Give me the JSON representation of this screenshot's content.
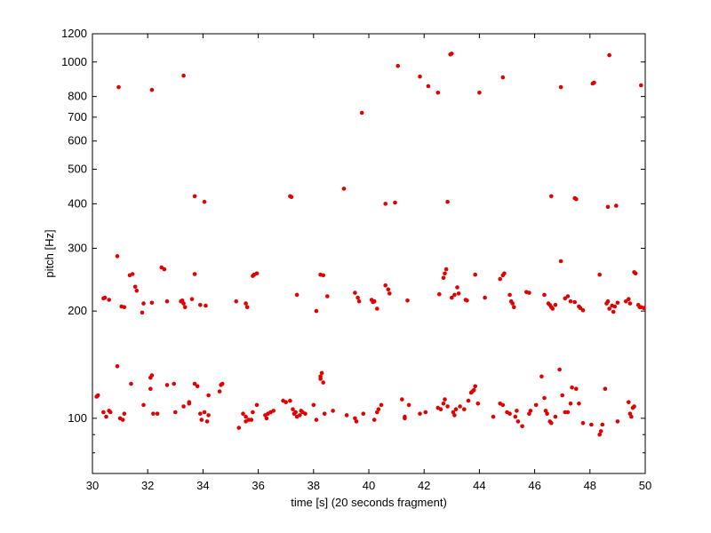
{
  "chart_data": {
    "type": "scatter",
    "title": "",
    "xlabel": "time [s] (20 seconds fragment)",
    "ylabel": "pitch [Hz]",
    "xlim": [
      30,
      50
    ],
    "ylim": [
      70,
      1200
    ],
    "y_scale": "log",
    "x_ticks": [
      30,
      32,
      34,
      36,
      38,
      40,
      42,
      44,
      46,
      48,
      50
    ],
    "y_ticks": [
      100,
      200,
      300,
      400,
      500,
      600,
      700,
      800,
      1000,
      1200
    ],
    "y_minor_ticks": [
      70,
      80,
      90
    ],
    "grid": false,
    "marker_color": "#e00000",
    "points": [
      [
        30.15,
        115
      ],
      [
        30.2,
        116
      ],
      [
        30.4,
        104
      ],
      [
        30.5,
        101
      ],
      [
        30.6,
        105
      ],
      [
        30.65,
        104
      ],
      [
        30.9,
        140
      ],
      [
        31.0,
        100
      ],
      [
        31.1,
        99
      ],
      [
        31.15,
        103
      ],
      [
        31.4,
        125
      ],
      [
        31.85,
        109
      ],
      [
        32.1,
        130
      ],
      [
        32.15,
        132
      ],
      [
        32.1,
        121
      ],
      [
        32.2,
        103
      ],
      [
        32.35,
        103
      ],
      [
        32.7,
        124
      ],
      [
        32.95,
        125
      ],
      [
        33.0,
        104
      ],
      [
        33.3,
        108
      ],
      [
        33.5,
        110
      ],
      [
        33.5,
        111
      ],
      [
        33.7,
        125
      ],
      [
        33.8,
        123
      ],
      [
        33.9,
        103
      ],
      [
        33.95,
        99
      ],
      [
        34.05,
        104
      ],
      [
        34.15,
        98
      ],
      [
        34.2,
        102
      ],
      [
        34.2,
        116
      ],
      [
        34.6,
        119
      ],
      [
        34.65,
        124
      ],
      [
        34.7,
        125
      ],
      [
        35.3,
        94
      ],
      [
        35.45,
        103
      ],
      [
        35.55,
        98
      ],
      [
        35.55,
        101
      ],
      [
        35.65,
        99
      ],
      [
        35.75,
        99
      ],
      [
        35.8,
        104
      ],
      [
        35.95,
        109
      ],
      [
        36.25,
        102
      ],
      [
        36.3,
        100
      ],
      [
        36.35,
        103
      ],
      [
        36.45,
        104
      ],
      [
        36.55,
        105
      ],
      [
        36.9,
        112
      ],
      [
        37.0,
        111
      ],
      [
        37.15,
        112
      ],
      [
        37.25,
        106
      ],
      [
        37.3,
        103
      ],
      [
        37.35,
        104
      ],
      [
        37.4,
        101
      ],
      [
        37.5,
        102
      ],
      [
        37.55,
        105
      ],
      [
        37.6,
        104
      ],
      [
        37.7,
        103
      ],
      [
        38.0,
        109
      ],
      [
        38.1,
        99
      ],
      [
        38.25,
        129
      ],
      [
        38.25,
        131
      ],
      [
        38.3,
        134
      ],
      [
        38.35,
        126
      ],
      [
        38.4,
        103
      ],
      [
        38.7,
        105
      ],
      [
        39.2,
        102
      ],
      [
        39.5,
        100
      ],
      [
        39.55,
        98
      ],
      [
        39.8,
        103
      ],
      [
        40.2,
        99
      ],
      [
        40.3,
        104
      ],
      [
        40.35,
        106
      ],
      [
        40.45,
        109
      ],
      [
        41.2,
        113
      ],
      [
        41.3,
        100
      ],
      [
        41.3,
        101
      ],
      [
        41.45,
        109
      ],
      [
        41.85,
        103
      ],
      [
        42.05,
        104
      ],
      [
        42.5,
        107
      ],
      [
        42.6,
        106
      ],
      [
        42.7,
        110
      ],
      [
        42.75,
        113
      ],
      [
        42.85,
        108
      ],
      [
        43.05,
        104
      ],
      [
        43.1,
        102
      ],
      [
        43.15,
        106
      ],
      [
        43.3,
        108
      ],
      [
        43.45,
        106
      ],
      [
        43.6,
        112
      ],
      [
        43.7,
        118
      ],
      [
        43.75,
        119
      ],
      [
        43.8,
        120
      ],
      [
        43.85,
        123
      ],
      [
        43.95,
        110
      ],
      [
        44.5,
        101
      ],
      [
        44.75,
        110
      ],
      [
        44.85,
        109
      ],
      [
        45.0,
        104
      ],
      [
        45.1,
        103
      ],
      [
        45.3,
        101
      ],
      [
        45.35,
        105
      ],
      [
        45.4,
        98
      ],
      [
        45.55,
        95
      ],
      [
        45.8,
        103
      ],
      [
        45.85,
        105
      ],
      [
        46.05,
        109
      ],
      [
        46.25,
        131
      ],
      [
        46.35,
        114
      ],
      [
        46.4,
        105
      ],
      [
        46.45,
        103
      ],
      [
        46.55,
        98
      ],
      [
        46.6,
        97
      ],
      [
        46.75,
        101
      ],
      [
        46.9,
        137
      ],
      [
        47.0,
        116
      ],
      [
        47.1,
        104
      ],
      [
        47.2,
        104
      ],
      [
        47.3,
        110
      ],
      [
        47.35,
        122
      ],
      [
        47.5,
        121
      ],
      [
        47.6,
        110
      ],
      [
        47.75,
        97
      ],
      [
        48.05,
        96
      ],
      [
        48.35,
        90
      ],
      [
        48.4,
        92
      ],
      [
        48.45,
        96
      ],
      [
        48.55,
        121
      ],
      [
        49.0,
        98
      ],
      [
        49.4,
        111
      ],
      [
        49.45,
        103
      ],
      [
        49.5,
        101
      ],
      [
        49.55,
        107
      ],
      [
        49.6,
        108
      ],
      [
        30.4,
        217
      ],
      [
        30.45,
        218
      ],
      [
        30.6,
        215
      ],
      [
        30.9,
        285
      ],
      [
        31.05,
        206
      ],
      [
        31.15,
        205
      ],
      [
        31.35,
        252
      ],
      [
        31.45,
        254
      ],
      [
        31.55,
        234
      ],
      [
        31.6,
        228
      ],
      [
        31.8,
        198
      ],
      [
        31.85,
        210
      ],
      [
        32.15,
        211
      ],
      [
        32.5,
        265
      ],
      [
        32.6,
        262
      ],
      [
        32.7,
        213
      ],
      [
        33.2,
        213
      ],
      [
        33.25,
        214
      ],
      [
        33.3,
        210
      ],
      [
        33.35,
        205
      ],
      [
        33.6,
        216
      ],
      [
        33.7,
        254
      ],
      [
        33.9,
        208
      ],
      [
        34.1,
        207
      ],
      [
        35.2,
        213
      ],
      [
        35.55,
        210
      ],
      [
        35.6,
        205
      ],
      [
        35.8,
        251
      ],
      [
        35.85,
        253
      ],
      [
        35.95,
        255
      ],
      [
        37.4,
        222
      ],
      [
        38.1,
        200
      ],
      [
        38.25,
        253
      ],
      [
        38.35,
        252
      ],
      [
        38.5,
        220
      ],
      [
        39.5,
        225
      ],
      [
        39.6,
        218
      ],
      [
        39.65,
        213
      ],
      [
        40.1,
        215
      ],
      [
        40.15,
        212
      ],
      [
        40.2,
        213
      ],
      [
        40.3,
        203
      ],
      [
        40.6,
        236
      ],
      [
        40.7,
        230
      ],
      [
        40.75,
        224
      ],
      [
        41.4,
        214
      ],
      [
        42.55,
        223
      ],
      [
        42.7,
        248
      ],
      [
        42.75,
        255
      ],
      [
        42.8,
        262
      ],
      [
        43.0,
        218
      ],
      [
        43.1,
        222
      ],
      [
        43.2,
        233
      ],
      [
        43.25,
        224
      ],
      [
        43.5,
        215
      ],
      [
        43.55,
        214
      ],
      [
        43.85,
        253
      ],
      [
        44.2,
        218
      ],
      [
        44.75,
        246
      ],
      [
        44.85,
        252
      ],
      [
        44.9,
        255
      ],
      [
        45.1,
        222
      ],
      [
        45.15,
        213
      ],
      [
        45.2,
        210
      ],
      [
        45.25,
        205
      ],
      [
        45.7,
        226
      ],
      [
        45.8,
        225
      ],
      [
        46.35,
        222
      ],
      [
        46.5,
        210
      ],
      [
        46.55,
        208
      ],
      [
        46.6,
        205
      ],
      [
        46.65,
        203
      ],
      [
        46.75,
        208
      ],
      [
        46.95,
        276
      ],
      [
        47.1,
        217
      ],
      [
        47.2,
        220
      ],
      [
        47.3,
        213
      ],
      [
        47.45,
        212
      ],
      [
        47.6,
        206
      ],
      [
        47.65,
        204
      ],
      [
        47.75,
        201
      ],
      [
        48.35,
        253
      ],
      [
        48.6,
        210
      ],
      [
        48.65,
        213
      ],
      [
        48.7,
        203
      ],
      [
        48.8,
        207
      ],
      [
        48.85,
        199
      ],
      [
        48.9,
        206
      ],
      [
        49.0,
        211
      ],
      [
        49.3,
        213
      ],
      [
        49.4,
        216
      ],
      [
        49.45,
        210
      ],
      [
        49.6,
        257
      ],
      [
        49.65,
        255
      ],
      [
        49.75,
        208
      ],
      [
        49.8,
        205
      ],
      [
        49.85,
        205
      ],
      [
        49.95,
        204
      ],
      [
        33.7,
        420
      ],
      [
        34.05,
        405
      ],
      [
        37.15,
        420
      ],
      [
        37.2,
        418
      ],
      [
        39.1,
        441
      ],
      [
        40.6,
        400
      ],
      [
        40.95,
        403
      ],
      [
        42.85,
        405
      ],
      [
        46.6,
        420
      ],
      [
        47.45,
        415
      ],
      [
        47.5,
        412
      ],
      [
        48.65,
        392
      ],
      [
        48.95,
        395
      ],
      [
        30.95,
        850
      ],
      [
        32.15,
        835
      ],
      [
        33.3,
        915
      ],
      [
        39.75,
        720
      ],
      [
        41.05,
        975
      ],
      [
        41.85,
        910
      ],
      [
        42.15,
        855
      ],
      [
        42.5,
        820
      ],
      [
        42.95,
        1050
      ],
      [
        43.0,
        1055
      ],
      [
        44.0,
        820
      ],
      [
        44.85,
        905
      ],
      [
        46.95,
        850
      ],
      [
        48.1,
        870
      ],
      [
        48.15,
        875
      ],
      [
        48.7,
        1045
      ],
      [
        49.85,
        860
      ]
    ]
  }
}
